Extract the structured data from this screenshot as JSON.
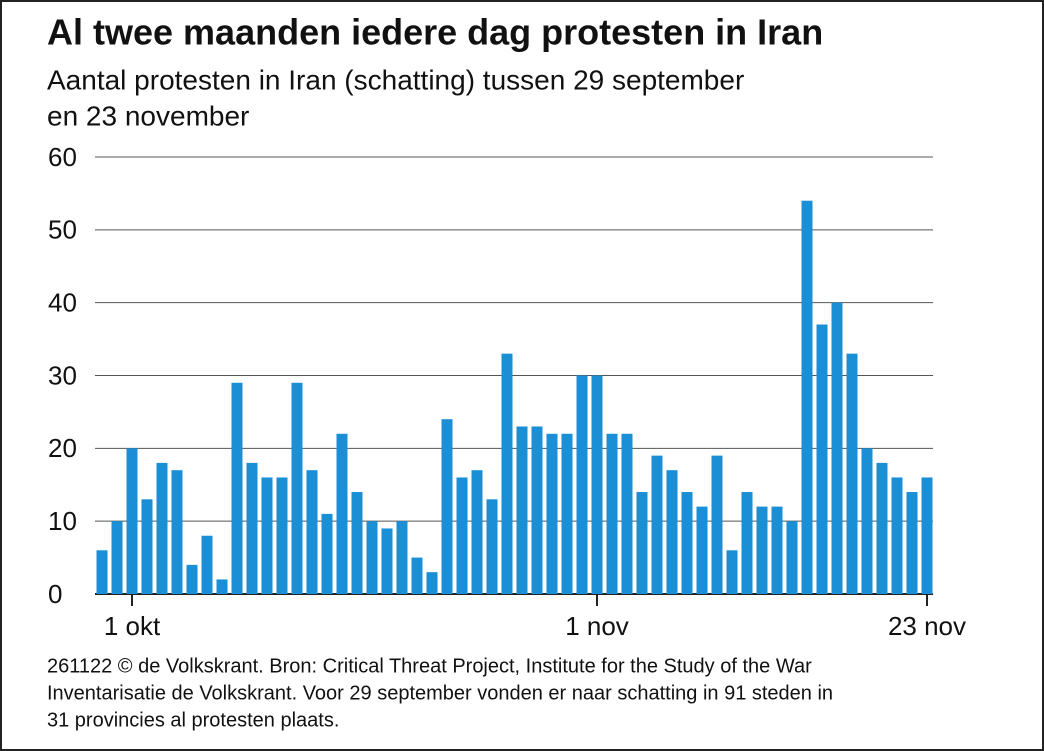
{
  "chart_data": {
    "type": "bar",
    "title": "Al twee maanden iedere dag protesten in Iran",
    "subtitle": [
      "Aantal protesten in Iran (schatting) tussen 29 september",
      "en 23 november"
    ],
    "categories": [
      null,
      null,
      "1 okt",
      null,
      null,
      null,
      null,
      null,
      null,
      null,
      null,
      null,
      null,
      null,
      null,
      null,
      null,
      null,
      null,
      null,
      null,
      null,
      null,
      null,
      null,
      null,
      null,
      null,
      null,
      null,
      null,
      null,
      null,
      "1 nov",
      null,
      null,
      null,
      null,
      null,
      null,
      null,
      null,
      null,
      null,
      null,
      null,
      null,
      null,
      null,
      null,
      null,
      null,
      null,
      null,
      null,
      "23 nov"
    ],
    "values": [
      6,
      10,
      20,
      13,
      18,
      17,
      4,
      8,
      2,
      29,
      18,
      16,
      16,
      29,
      17,
      11,
      22,
      14,
      10,
      9,
      10,
      5,
      3,
      24,
      16,
      17,
      13,
      33,
      23,
      23,
      22,
      22,
      30,
      30,
      22,
      22,
      14,
      19,
      17,
      14,
      12,
      19,
      6,
      14,
      12,
      12,
      10,
      54,
      37,
      40,
      33,
      20,
      18,
      16,
      14,
      16
    ],
    "color": "#1a8fd6",
    "ylim": [
      0,
      60
    ],
    "yticks": [
      0,
      10,
      20,
      30,
      40,
      50,
      60
    ],
    "grid": true,
    "footer": [
      "261122 © de Volkskrant. Bron: Critical Threat Project, Institute for the Study of the War",
      "Inventarisatie de Volkskrant. Voor 29 september vonden er naar schatting in 91 steden in",
      "31 provincies al protesten plaats."
    ]
  }
}
